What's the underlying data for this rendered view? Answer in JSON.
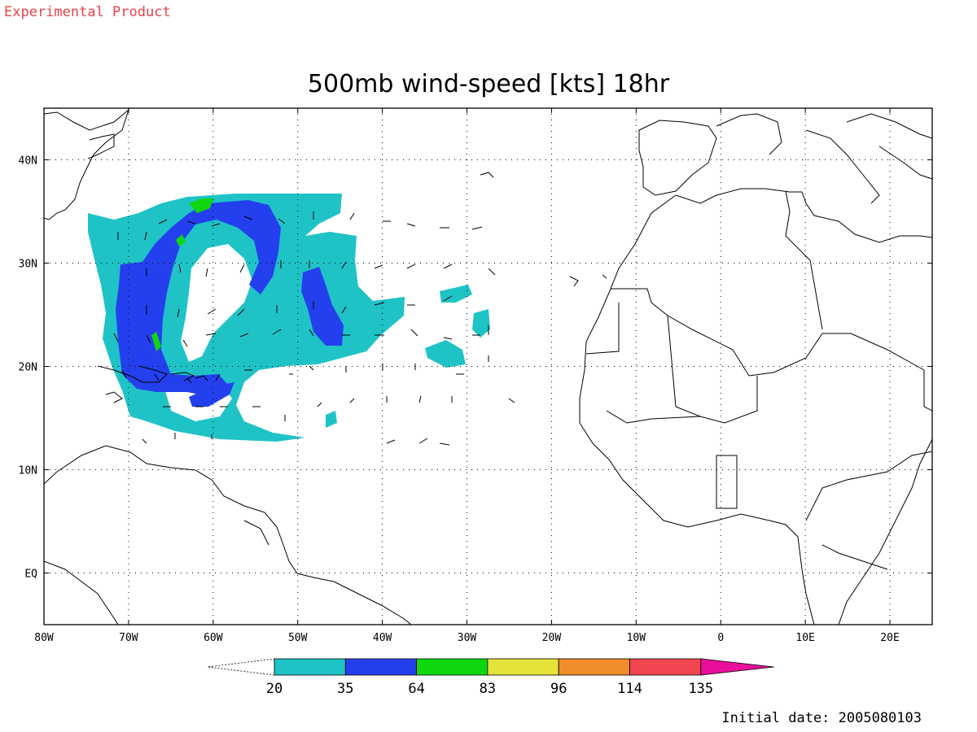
{
  "header": {
    "label": "Experimental Product",
    "label_color": "#e8424a"
  },
  "title": "500mb wind-speed [kts] 18hr",
  "footer": {
    "initial_date": "Initial date: 2005080103"
  },
  "map": {
    "lon_range": [
      -80,
      25
    ],
    "lat_range": [
      -5,
      45
    ],
    "lon_ticks": [
      {
        "v": -80,
        "label": "80W"
      },
      {
        "v": -70,
        "label": "70W"
      },
      {
        "v": -60,
        "label": "60W"
      },
      {
        "v": -50,
        "label": "50W"
      },
      {
        "v": -40,
        "label": "40W"
      },
      {
        "v": -30,
        "label": "30W"
      },
      {
        "v": -20,
        "label": "20W"
      },
      {
        "v": -10,
        "label": "10W"
      },
      {
        "v": 0,
        "label": "0"
      },
      {
        "v": 10,
        "label": "10E"
      },
      {
        "v": 20,
        "label": "20E"
      }
    ],
    "lat_ticks": [
      {
        "v": 40,
        "label": "40N"
      },
      {
        "v": 30,
        "label": "30N"
      },
      {
        "v": 20,
        "label": "20N"
      },
      {
        "v": 10,
        "label": "10N"
      },
      {
        "v": 0,
        "label": "EQ"
      }
    ],
    "grid": "dotted"
  },
  "legend": {
    "colors": [
      "#1fc3c6",
      "#2440ee",
      "#10d610",
      "#e3e33a",
      "#f08c2a",
      "#f24650",
      "#e8109a"
    ],
    "labels": [
      "20",
      "35",
      "64",
      "83",
      "96",
      "114",
      "135"
    ]
  },
  "chart_data": {
    "type": "map",
    "variable": "500mb wind-speed",
    "units": "kts",
    "forecast_hour": "18hr",
    "levels": [
      20,
      35,
      64,
      83,
      96,
      114,
      135
    ]
  }
}
